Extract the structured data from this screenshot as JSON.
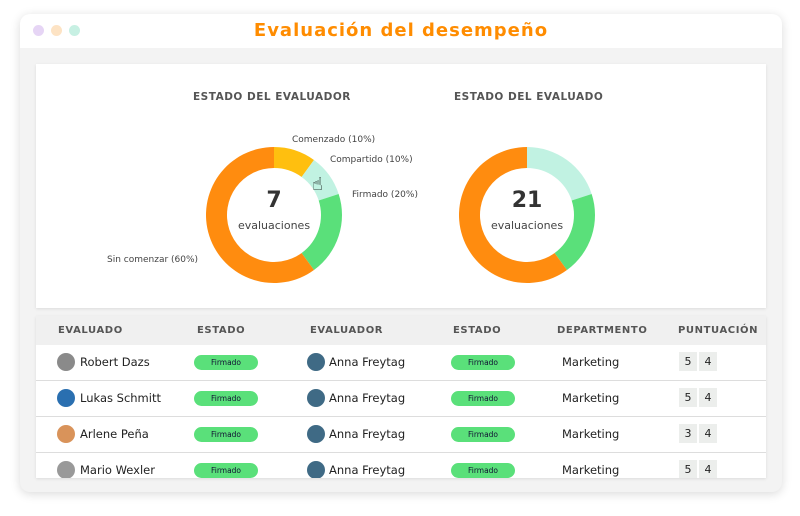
{
  "window": {
    "title": "Evaluación del desempeño",
    "dots": [
      "#e6d5f5",
      "#fde3c4",
      "#c7f0e3"
    ]
  },
  "colors": {
    "orange": "#ff8c0f",
    "yellow": "#ffbf0f",
    "mint": "#c1f2e2",
    "green": "#5ae07a"
  },
  "chart_data": [
    {
      "type": "pie",
      "title": "ESTADO DEL EVALUADOR",
      "center_value": "7",
      "center_label": "evaluaciones",
      "slices": [
        {
          "label": "Comenzado (10%)",
          "value": 10,
          "color": "#ffbf0f"
        },
        {
          "label": "Compartido (10%)",
          "value": 10,
          "color": "#c1f2e2"
        },
        {
          "label": "Firmado (20%)",
          "value": 20,
          "color": "#5ae07a"
        },
        {
          "label": "Sin comenzar (60%)",
          "value": 60,
          "color": "#ff8c0f"
        }
      ]
    },
    {
      "type": "pie",
      "title": "ESTADO DEL EVALUADO",
      "center_value": "21",
      "center_label": "evaluaciones",
      "slices": [
        {
          "value": 20,
          "color": "#c1f2e2"
        },
        {
          "value": 20,
          "color": "#5ae07a"
        },
        {
          "value": 60,
          "color": "#ff8c0f"
        }
      ]
    }
  ],
  "table": {
    "headers": [
      "EVALUADO",
      "ESTADO",
      "EVALUADOR",
      "ESTADO",
      "DEPARTMENTO",
      "PUNTUACIÓN"
    ],
    "rows": [
      {
        "evaluado": "Robert Dazs",
        "estado1": "Firmado",
        "evaluador": "Anna Freytag",
        "estado2": "Firmado",
        "dept": "Marketing",
        "s1": "5",
        "s2": "4"
      },
      {
        "evaluado": "Lukas Schmitt",
        "estado1": "Firmado",
        "evaluador": "Anna Freytag",
        "estado2": "Firmado",
        "dept": "Marketing",
        "s1": "5",
        "s2": "4"
      },
      {
        "evaluado": "Arlene Peña",
        "estado1": "Firmado",
        "evaluador": "Anna Freytag",
        "estado2": "Firmado",
        "dept": "Marketing",
        "s1": "3",
        "s2": "4"
      },
      {
        "evaluado": "Mario Wexler",
        "estado1": "Firmado",
        "evaluador": "Anna Freytag",
        "estado2": "Firmado",
        "dept": "Marketing",
        "s1": "5",
        "s2": "4"
      }
    ]
  }
}
